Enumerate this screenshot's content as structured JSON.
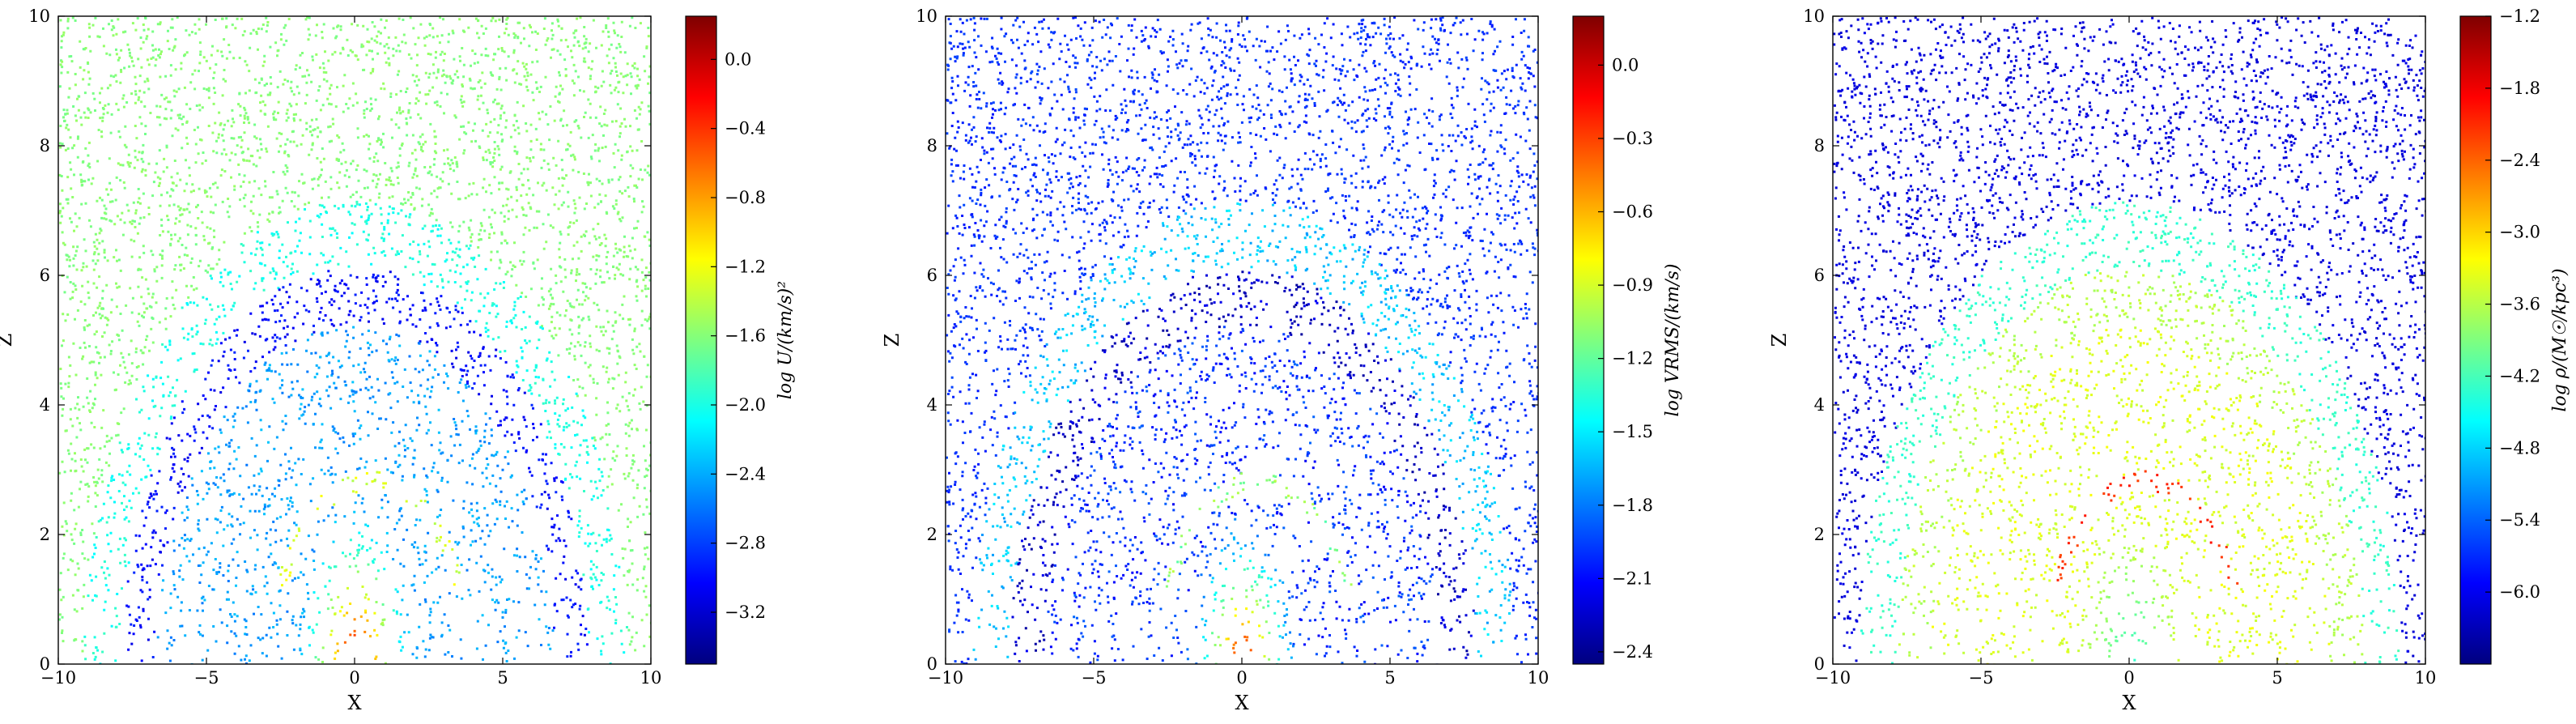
{
  "figure": {
    "background": "#ffffff"
  },
  "colormap": [
    "#00007f",
    "#0000ff",
    "#007fff",
    "#00ffff",
    "#7fff7f",
    "#ffff00",
    "#ff7f00",
    "#ff0000",
    "#7f0000"
  ],
  "chart_data": [
    {
      "type": "scatter",
      "xlabel": "X",
      "ylabel": "Z",
      "xlim": [
        -10,
        10
      ],
      "ylim": [
        0,
        10
      ],
      "xticks": [
        "−10",
        "−5",
        "0",
        "5",
        "10"
      ],
      "yticks": [
        "0",
        "2",
        "4",
        "6",
        "8",
        "10"
      ],
      "colorbar": {
        "label": "log U/(km/s)²",
        "range": [
          -3.5,
          0.25
        ],
        "ticks": [
          {
            "value": 0.0,
            "label": "0.0"
          },
          {
            "value": -0.4,
            "label": "−0.4"
          },
          {
            "value": -0.8,
            "label": "−0.8"
          },
          {
            "value": -1.2,
            "label": "−1.2"
          },
          {
            "value": -1.6,
            "label": "−1.6"
          },
          {
            "value": -2.0,
            "label": "−2.0"
          },
          {
            "value": -2.4,
            "label": "−2.4"
          },
          {
            "value": -2.8,
            "label": "−2.8"
          },
          {
            "value": -3.2,
            "label": "−3.2"
          }
        ]
      },
      "field": {
        "outside": -1.6,
        "halo": -2.0,
        "shell": -2.45,
        "dark_edge": -3.0,
        "core": 0.1,
        "core_falloff": 1.4,
        "arcs": -1.3,
        "seed": 11
      }
    },
    {
      "type": "scatter",
      "xlabel": "X",
      "ylabel": "Z",
      "xlim": [
        -10,
        10
      ],
      "ylim": [
        0,
        10
      ],
      "xticks": [
        "−10",
        "−5",
        "0",
        "5",
        "10"
      ],
      "yticks": [
        "0",
        "2",
        "4",
        "6",
        "8",
        "10"
      ],
      "colorbar": {
        "label": "log VRMS/(km/s)",
        "range": [
          -2.45,
          0.2
        ],
        "ticks": [
          {
            "value": 0.0,
            "label": "0.0"
          },
          {
            "value": -0.3,
            "label": "−0.3"
          },
          {
            "value": -0.6,
            "label": "−0.6"
          },
          {
            "value": -0.9,
            "label": "−0.9"
          },
          {
            "value": -1.2,
            "label": "−1.2"
          },
          {
            "value": -1.5,
            "label": "−1.5"
          },
          {
            "value": -1.8,
            "label": "−1.8"
          },
          {
            "value": -2.1,
            "label": "−2.1"
          },
          {
            "value": -2.4,
            "label": "−2.4"
          }
        ]
      },
      "field": {
        "outside": -2.0,
        "halo": -1.6,
        "shell": -2.0,
        "dark_edge": -2.25,
        "core": 0.05,
        "core_falloff": 1.25,
        "arcs": -1.1,
        "seed": 23
      }
    },
    {
      "type": "scatter",
      "xlabel": "X",
      "ylabel": "Z",
      "xlim": [
        -10,
        10
      ],
      "ylim": [
        0,
        10
      ],
      "xticks": [
        "−10",
        "−5",
        "0",
        "5",
        "10"
      ],
      "yticks": [
        "0",
        "2",
        "4",
        "6",
        "8",
        "10"
      ],
      "colorbar": {
        "label": "log ρ/(M☉/kpc³)",
        "range": [
          -6.6,
          -1.2
        ],
        "ticks": [
          {
            "value": -1.2,
            "label": "−1.2"
          },
          {
            "value": -1.8,
            "label": "−1.8"
          },
          {
            "value": -2.4,
            "label": "−2.4"
          },
          {
            "value": -3.0,
            "label": "−3.0"
          },
          {
            "value": -3.6,
            "label": "−3.6"
          },
          {
            "value": -4.2,
            "label": "−4.2"
          },
          {
            "value": -4.8,
            "label": "−4.8"
          },
          {
            "value": -5.4,
            "label": "−5.4"
          },
          {
            "value": -6.0,
            "label": "−6.0"
          }
        ]
      },
      "field": {
        "outside": -6.1,
        "halo": -4.3,
        "shell": -3.4,
        "dark_edge": -3.6,
        "core": -4.4,
        "core_falloff": -0.2,
        "arcs": -2.1,
        "seed": 37
      }
    }
  ]
}
